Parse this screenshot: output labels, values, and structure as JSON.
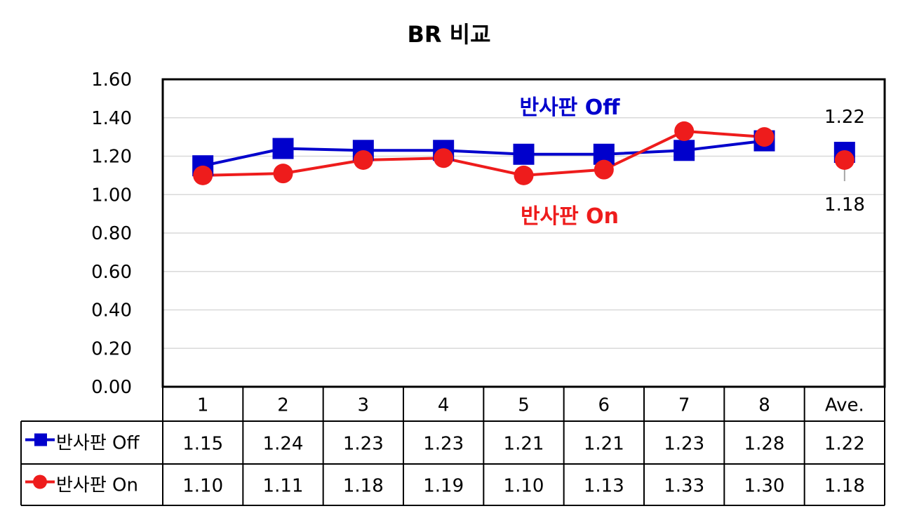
{
  "chart_data": {
    "type": "line",
    "title": "BR 비교",
    "categories": [
      "1",
      "2",
      "3",
      "4",
      "5",
      "6",
      "7",
      "8",
      "Ave."
    ],
    "ylim": [
      0,
      1.6
    ],
    "yticks": [
      "0.00",
      "0.20",
      "0.40",
      "0.60",
      "0.80",
      "1.00",
      "1.20",
      "1.40",
      "1.60"
    ],
    "grid": true,
    "legend_position": "data-table-left",
    "series": [
      {
        "name": "반사판 Off",
        "color": "#0000CC",
        "marker": "square",
        "values": [
          1.15,
          1.24,
          1.23,
          1.23,
          1.21,
          1.21,
          1.23,
          1.28,
          1.22
        ],
        "labels": [
          "1.15",
          "1.24",
          "1.23",
          "1.23",
          "1.21",
          "1.21",
          "1.23",
          "1.28",
          "1.22"
        ]
      },
      {
        "name": "반사판 On",
        "color": "#EE1C1C",
        "marker": "circle",
        "values": [
          1.1,
          1.11,
          1.18,
          1.19,
          1.1,
          1.13,
          1.33,
          1.3,
          1.18
        ],
        "labels": [
          "1.10",
          "1.11",
          "1.18",
          "1.19",
          "1.10",
          "1.13",
          "1.33",
          "1.30",
          "1.18"
        ]
      }
    ],
    "annotations": [
      {
        "text": "반사판 Off",
        "color": "#0000CC"
      },
      {
        "text": "반사판 On",
        "color": "#EE1C1C"
      }
    ],
    "ave_labels": {
      "off": "1.22",
      "on": "1.18"
    }
  }
}
